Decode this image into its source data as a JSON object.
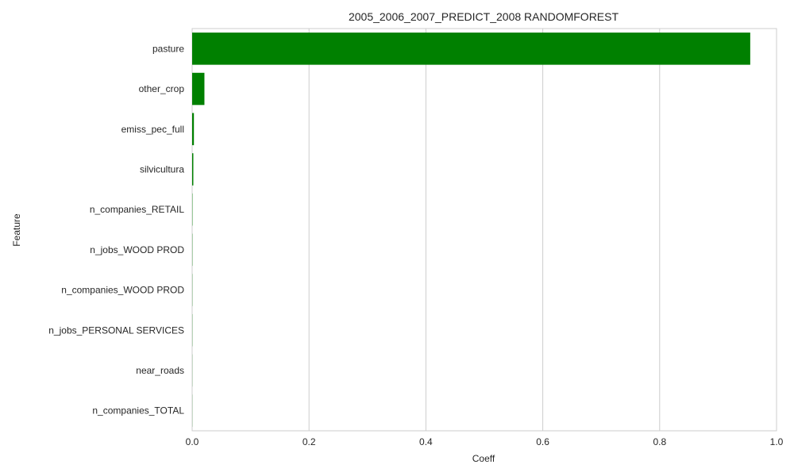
{
  "chart_data": {
    "type": "bar",
    "orientation": "horizontal",
    "title": "2005_2006_2007_PREDICT_2008 RANDOMFOREST",
    "xlabel": "Coeff",
    "ylabel": "Feature",
    "categories": [
      "pasture",
      "other_crop",
      "emiss_pec_full",
      "silvicultura",
      "n_companies_RETAIL",
      "n_jobs_WOOD PROD",
      "n_companies_WOOD PROD",
      "n_jobs_PERSONAL SERVICES",
      "near_roads",
      "n_companies_TOTAL"
    ],
    "values": [
      0.955,
      0.021,
      0.003,
      0.002,
      0.0005,
      0.0004,
      0.0003,
      0.0003,
      0.0002,
      0.0002
    ],
    "xlim": [
      0,
      1.0
    ],
    "xticks": [
      "0.0",
      "0.2",
      "0.4",
      "0.6",
      "0.8",
      "1.0"
    ],
    "grid": true,
    "colors": {
      "bar": "#008000",
      "grid": "#cccccc",
      "text": "#262626"
    }
  }
}
